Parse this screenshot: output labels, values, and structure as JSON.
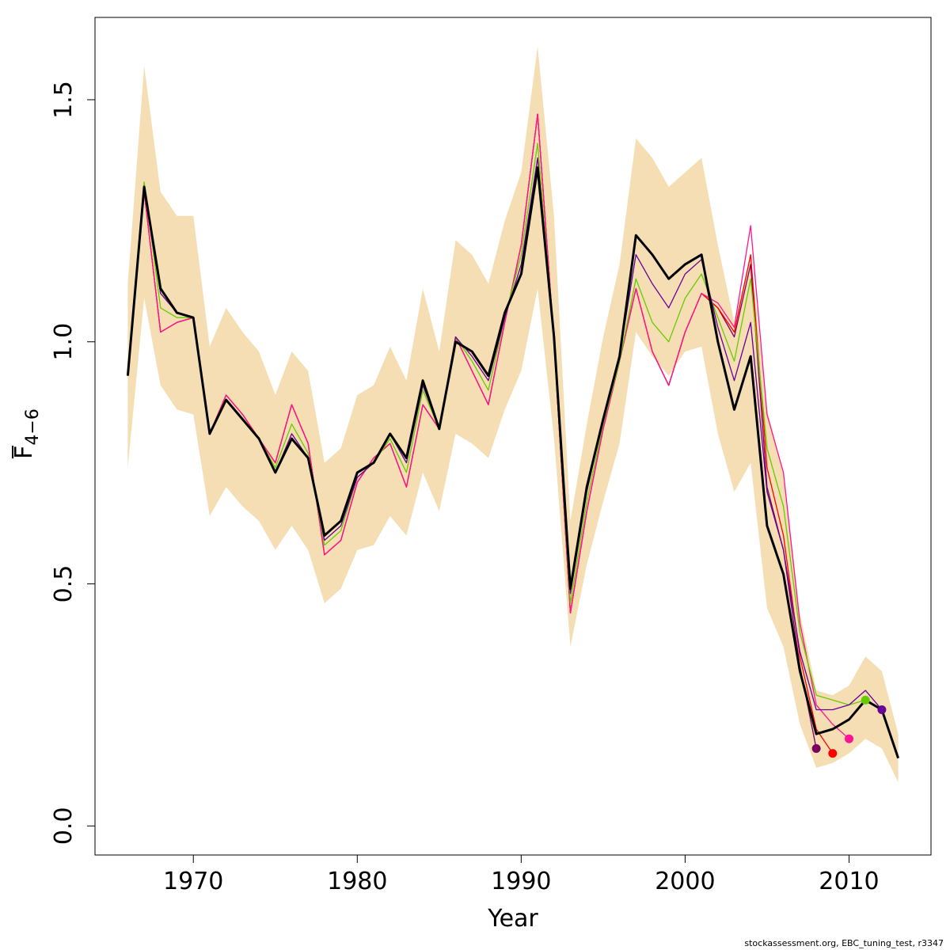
{
  "chart_data": {
    "type": "line",
    "xlabel": "Year",
    "ylabel_main": "F",
    "ylabel_sub": "4−6",
    "xlim": [
      1964,
      2015
    ],
    "ylim": [
      -0.06,
      1.67
    ],
    "x_ticks": [
      1970,
      1980,
      1990,
      2000,
      2010
    ],
    "x_tick_labels": [
      "1970",
      "1980",
      "1990",
      "2000",
      "2010"
    ],
    "y_ticks": [
      0.0,
      0.5,
      1.0,
      1.5
    ],
    "y_tick_labels": [
      "0.0",
      "0.5",
      "1.0",
      "1.5"
    ],
    "grid": false,
    "legend": "none",
    "band_color": "#f5deb3",
    "confidence_band": {
      "x": [
        1966,
        1967,
        1968,
        1969,
        1970,
        1971,
        1972,
        1973,
        1974,
        1975,
        1976,
        1977,
        1978,
        1979,
        1980,
        1981,
        1982,
        1983,
        1984,
        1985,
        1986,
        1987,
        1988,
        1989,
        1990,
        1991,
        1992,
        1993,
        1994,
        1995,
        1996,
        1997,
        1998,
        1999,
        2000,
        2001,
        2002,
        2003,
        2004,
        2005,
        2006,
        2007,
        2008,
        2009,
        2010,
        2011,
        2012,
        2013
      ],
      "lower": [
        0.74,
        1.09,
        0.91,
        0.86,
        0.85,
        0.64,
        0.7,
        0.66,
        0.63,
        0.57,
        0.62,
        0.57,
        0.46,
        0.49,
        0.57,
        0.58,
        0.64,
        0.6,
        0.73,
        0.65,
        0.81,
        0.79,
        0.76,
        0.86,
        0.94,
        1.11,
        0.8,
        0.37,
        0.54,
        0.67,
        0.79,
        1.02,
        0.97,
        0.93,
        0.98,
        0.99,
        0.81,
        0.69,
        0.75,
        0.45,
        0.37,
        0.21,
        0.12,
        0.13,
        0.15,
        0.18,
        0.16,
        0.09
      ],
      "upper": [
        1.12,
        1.57,
        1.31,
        1.26,
        1.26,
        0.99,
        1.07,
        1.02,
        0.98,
        0.89,
        0.98,
        0.94,
        0.75,
        0.78,
        0.89,
        0.91,
        0.99,
        0.92,
        1.11,
        0.98,
        1.21,
        1.18,
        1.12,
        1.25,
        1.35,
        1.61,
        1.26,
        0.63,
        0.83,
        1.01,
        1.16,
        1.42,
        1.38,
        1.32,
        1.35,
        1.38,
        1.2,
        1.04,
        1.18,
        0.86,
        0.73,
        0.44,
        0.28,
        0.27,
        0.29,
        0.35,
        0.32,
        0.19
      ]
    },
    "series": [
      {
        "color": "#000000",
        "width": 3,
        "marker": false,
        "x": [
          1966,
          1967,
          1968,
          1969,
          1970,
          1971,
          1972,
          1973,
          1974,
          1975,
          1976,
          1977,
          1978,
          1979,
          1980,
          1981,
          1982,
          1983,
          1984,
          1985,
          1986,
          1987,
          1988,
          1989,
          1990,
          1991,
          1992,
          1993,
          1994,
          1995,
          1996,
          1997,
          1998,
          1999,
          2000,
          2001,
          2002,
          2003,
          2004,
          2005,
          2006,
          2007,
          2008,
          2009,
          2010,
          2011,
          2012,
          2013
        ],
        "values": [
          0.93,
          1.32,
          1.11,
          1.06,
          1.05,
          0.81,
          0.88,
          0.84,
          0.8,
          0.73,
          0.8,
          0.76,
          0.6,
          0.63,
          0.73,
          0.75,
          0.81,
          0.76,
          0.92,
          0.82,
          1.0,
          0.98,
          0.93,
          1.06,
          1.14,
          1.36,
          1.01,
          0.49,
          0.7,
          0.84,
          0.97,
          1.22,
          1.18,
          1.13,
          1.16,
          1.18,
          1.0,
          0.86,
          0.97,
          0.62,
          0.52,
          0.32,
          0.19,
          0.2,
          0.22,
          0.26,
          0.24,
          0.14
        ]
      },
      {
        "color": "#7a0060",
        "width": 1.3,
        "marker": true,
        "x": [
          1966,
          1967,
          1968,
          1969,
          1970,
          1971,
          1972,
          1973,
          1974,
          1975,
          1976,
          1977,
          1978,
          1979,
          1980,
          1981,
          1982,
          1983,
          1984,
          1985,
          1986,
          1987,
          1988,
          1989,
          1990,
          1991,
          1992,
          1993,
          1994,
          1995,
          1996,
          1997,
          1998,
          1999,
          2000,
          2001,
          2002,
          2003,
          2004,
          2005,
          2006,
          2007,
          2008
        ],
        "values": [
          0.93,
          1.31,
          1.02,
          1.04,
          1.05,
          0.81,
          0.89,
          0.85,
          0.8,
          0.75,
          0.87,
          0.79,
          0.56,
          0.59,
          0.71,
          0.76,
          0.79,
          0.7,
          0.87,
          0.82,
          1.01,
          0.94,
          0.87,
          1.04,
          1.2,
          1.47,
          1.0,
          0.44,
          0.65,
          0.82,
          0.96,
          1.11,
          0.98,
          0.91,
          1.02,
          1.1,
          1.07,
          1.01,
          1.16,
          0.7,
          0.57,
          0.33,
          0.16
        ]
      },
      {
        "color": "#ff0000",
        "width": 1.3,
        "marker": true,
        "x": [
          1966,
          1967,
          1968,
          1969,
          1970,
          1971,
          1972,
          1973,
          1974,
          1975,
          1976,
          1977,
          1978,
          1979,
          1980,
          1981,
          1982,
          1983,
          1984,
          1985,
          1986,
          1987,
          1988,
          1989,
          1990,
          1991,
          1992,
          1993,
          1994,
          1995,
          1996,
          1997,
          1998,
          1999,
          2000,
          2001,
          2002,
          2003,
          2004,
          2005,
          2006,
          2007,
          2008,
          2009
        ],
        "values": [
          0.93,
          1.31,
          1.02,
          1.04,
          1.05,
          0.81,
          0.89,
          0.85,
          0.8,
          0.75,
          0.87,
          0.79,
          0.56,
          0.59,
          0.71,
          0.76,
          0.79,
          0.7,
          0.87,
          0.82,
          1.01,
          0.94,
          0.87,
          1.04,
          1.2,
          1.47,
          1.0,
          0.44,
          0.65,
          0.82,
          0.96,
          1.11,
          0.98,
          0.91,
          1.02,
          1.1,
          1.07,
          1.02,
          1.18,
          0.74,
          0.6,
          0.35,
          0.2,
          0.15
        ]
      },
      {
        "color": "#ff1493",
        "width": 1.3,
        "marker": true,
        "x": [
          1966,
          1967,
          1968,
          1969,
          1970,
          1971,
          1972,
          1973,
          1974,
          1975,
          1976,
          1977,
          1978,
          1979,
          1980,
          1981,
          1982,
          1983,
          1984,
          1985,
          1986,
          1987,
          1988,
          1989,
          1990,
          1991,
          1992,
          1993,
          1994,
          1995,
          1996,
          1997,
          1998,
          1999,
          2000,
          2001,
          2002,
          2003,
          2004,
          2005,
          2006,
          2007,
          2008,
          2009,
          2010
        ],
        "values": [
          0.93,
          1.31,
          1.02,
          1.04,
          1.05,
          0.81,
          0.89,
          0.85,
          0.8,
          0.75,
          0.87,
          0.79,
          0.56,
          0.59,
          0.71,
          0.76,
          0.79,
          0.7,
          0.87,
          0.82,
          1.01,
          0.94,
          0.87,
          1.04,
          1.2,
          1.47,
          1.0,
          0.44,
          0.65,
          0.82,
          0.96,
          1.11,
          0.98,
          0.91,
          1.02,
          1.1,
          1.08,
          1.03,
          1.24,
          0.85,
          0.73,
          0.42,
          0.25,
          0.21,
          0.18
        ]
      },
      {
        "color": "#66cc00",
        "width": 1.3,
        "marker": true,
        "x": [
          1966,
          1967,
          1968,
          1969,
          1970,
          1971,
          1972,
          1973,
          1974,
          1975,
          1976,
          1977,
          1978,
          1979,
          1980,
          1981,
          1982,
          1983,
          1984,
          1985,
          1986,
          1987,
          1988,
          1989,
          1990,
          1991,
          1992,
          1993,
          1994,
          1995,
          1996,
          1997,
          1998,
          1999,
          2000,
          2001,
          2002,
          2003,
          2004,
          2005,
          2006,
          2007,
          2008,
          2009,
          2010,
          2011
        ],
        "values": [
          0.93,
          1.33,
          1.07,
          1.05,
          1.05,
          0.81,
          0.88,
          0.84,
          0.8,
          0.74,
          0.83,
          0.77,
          0.58,
          0.61,
          0.72,
          0.75,
          0.8,
          0.73,
          0.9,
          0.82,
          1.01,
          0.96,
          0.9,
          1.05,
          1.18,
          1.41,
          1.0,
          0.46,
          0.67,
          0.83,
          0.96,
          1.13,
          1.04,
          1.0,
          1.09,
          1.14,
          1.05,
          0.96,
          1.13,
          0.78,
          0.66,
          0.4,
          0.27,
          0.26,
          0.25,
          0.26
        ]
      },
      {
        "color": "#660099",
        "width": 1.3,
        "marker": true,
        "x": [
          1966,
          1967,
          1968,
          1969,
          1970,
          1971,
          1972,
          1973,
          1974,
          1975,
          1976,
          1977,
          1978,
          1979,
          1980,
          1981,
          1982,
          1983,
          1984,
          1985,
          1986,
          1987,
          1988,
          1989,
          1990,
          1991,
          1992,
          1993,
          1994,
          1995,
          1996,
          1997,
          1998,
          1999,
          2000,
          2001,
          2002,
          2003,
          2004,
          2005,
          2006,
          2007,
          2008,
          2009,
          2010,
          2011,
          2012
        ],
        "values": [
          0.93,
          1.32,
          1.1,
          1.06,
          1.05,
          0.81,
          0.88,
          0.84,
          0.8,
          0.73,
          0.81,
          0.76,
          0.59,
          0.62,
          0.72,
          0.75,
          0.81,
          0.75,
          0.91,
          0.82,
          1.01,
          0.97,
          0.92,
          1.05,
          1.16,
          1.38,
          1.0,
          0.48,
          0.69,
          0.84,
          0.97,
          1.18,
          1.12,
          1.07,
          1.14,
          1.17,
          1.03,
          0.92,
          1.04,
          0.69,
          0.57,
          0.36,
          0.24,
          0.24,
          0.25,
          0.28,
          0.24
        ]
      }
    ]
  },
  "footer": {
    "credit": "stockassessment.org, EBC_tuning_test, r3347"
  }
}
